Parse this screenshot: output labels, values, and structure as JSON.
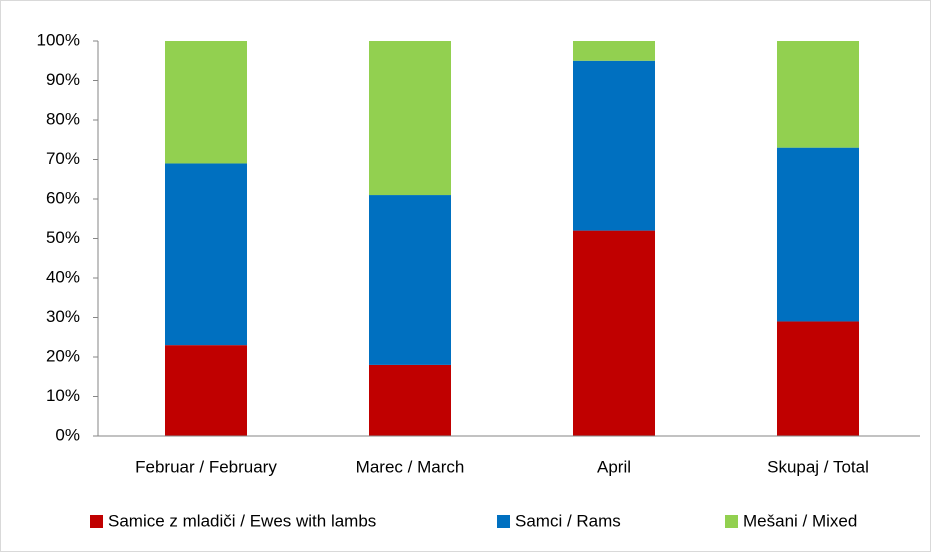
{
  "chart_data": {
    "type": "stacked_bar",
    "categories": [
      "Februar / February",
      "Marec / March",
      "April",
      "Skupaj / Total"
    ],
    "series": [
      {
        "name": "Samice z mladiči / Ewes with lambs",
        "color": "#c00000",
        "values": [
          23,
          18,
          52,
          29
        ]
      },
      {
        "name": "Samci / Rams",
        "color": "#0070c0",
        "values": [
          46,
          43,
          43,
          44
        ]
      },
      {
        "name": "Mešani / Mixed",
        "color": "#92d050",
        "values": [
          31,
          39,
          5,
          27
        ]
      }
    ],
    "ylim": [
      0,
      100
    ],
    "yticks": [
      {
        "value": 0,
        "label": "0%"
      },
      {
        "value": 10,
        "label": "10%"
      },
      {
        "value": 20,
        "label": "20%"
      },
      {
        "value": 30,
        "label": "30%"
      },
      {
        "value": 40,
        "label": "40%"
      },
      {
        "value": 50,
        "label": "50%"
      },
      {
        "value": 60,
        "label": "60%"
      },
      {
        "value": 70,
        "label": "70%"
      },
      {
        "value": 80,
        "label": "80%"
      },
      {
        "value": 90,
        "label": "90%"
      },
      {
        "value": 100,
        "label": "100%"
      }
    ],
    "grid": false,
    "legend": "bottom"
  }
}
